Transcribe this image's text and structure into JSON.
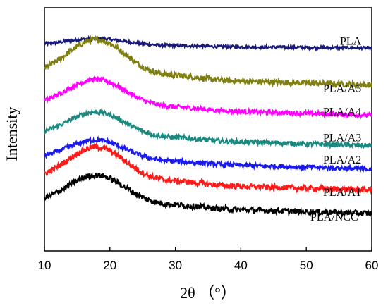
{
  "chart_data": {
    "type": "line",
    "xlabel": "2θ （°）",
    "ylabel": "Intensity",
    "xlim": [
      10,
      60
    ],
    "xticks": [
      10,
      20,
      30,
      40,
      50,
      60
    ],
    "y_ticks_shown": false,
    "grid": false,
    "legend": "none (series labelled inline at right end of each curve)",
    "series": [
      {
        "name": "PLA",
        "color": "#1a1a7a",
        "baseline": 3.2,
        "hump": 0.15,
        "noise": 0.03
      },
      {
        "name": "PLA/A5",
        "color": "#7f7f10",
        "baseline": 2.55,
        "hump": 0.8,
        "noise": 0.06
      },
      {
        "name": "PLA/A4",
        "color": "#ff00ff",
        "baseline": 1.9,
        "hump": 0.6,
        "noise": 0.05
      },
      {
        "name": "PLA/A3",
        "color": "#1a8a80",
        "baseline": 1.25,
        "hump": 0.55,
        "noise": 0.05
      },
      {
        "name": "PLA/A2",
        "color": "#1a1aee",
        "baseline": 0.75,
        "hump": 0.45,
        "noise": 0.05
      },
      {
        "name": "PLA/A1",
        "color": "#ff1a1a",
        "baseline": 0.3,
        "hump": 0.75,
        "noise": 0.06
      },
      {
        "name": "PLA/NCC",
        "color": "#000000",
        "baseline": -0.2,
        "hump": 0.65,
        "noise": 0.06
      }
    ],
    "hump_center": 18,
    "hump_width": 4.5,
    "ylim": [
      -1.2,
      4.0
    ]
  }
}
